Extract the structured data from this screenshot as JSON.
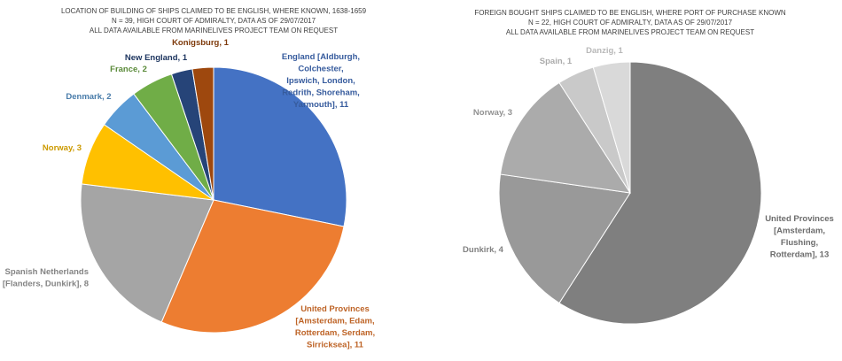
{
  "chart_data": [
    {
      "type": "pie",
      "title": "LOCATION OF BUILDING OF SHIPS CLAIMED TO BE ENGLISH, WHERE KNOWN, 1638-1659",
      "subtitles": [
        "N = 39, HIGH COURT OF ADMIRALTY, DATA AS OF 29/07/2017",
        "ALL DATA AVAILABLE FROM MARINELIVES PROJECT TEAM ON REQUEST"
      ],
      "labels": [
        "England [Aldburgh, Colchester, Ipswich, London, Redrith, Shoreham, Yarmouth], 11",
        "United Provinces [Amsterdam, Edam, Rotterdam, Serdam, Sirricksea], 11",
        "Spanish Netherlands [Flanders, Dunkirk], 8",
        "Norway, 3",
        "Denmark, 2",
        "France, 2",
        "New England, 1",
        "Konigsburg, 1"
      ],
      "values": [
        11,
        11,
        8,
        3,
        2,
        2,
        1,
        1
      ],
      "colors": [
        "#4472c4",
        "#ed7d31",
        "#a5a5a5",
        "#ffc000",
        "#5b9bd5",
        "#70ad47",
        "#264478",
        "#9e480e"
      ]
    },
    {
      "type": "pie",
      "title": "FOREIGN BOUGHT SHIPS CLAIMED TO BE ENGLISH, WHERE PORT OF PURCHASE KNOWN",
      "subtitles": [
        "N = 22, HIGH COURT OF ADMIRALTY, DATA AS OF 29/07/2017",
        "ALL DATA AVAILABLE FROM MARINELIVES PROJECT TEAM ON REQUEST"
      ],
      "labels": [
        "United Provinces [Amsterdam, Flushing, Rotterdam], 13",
        "Dunkirk, 4",
        "Norway, 3",
        "Spain, 1",
        "Danzig, 1"
      ],
      "values": [
        13,
        4,
        3,
        1,
        1
      ],
      "colors": [
        "#7f7f7f",
        "#999999",
        "#ababab",
        "#c9c9c9",
        "#d9d9d9"
      ]
    }
  ]
}
